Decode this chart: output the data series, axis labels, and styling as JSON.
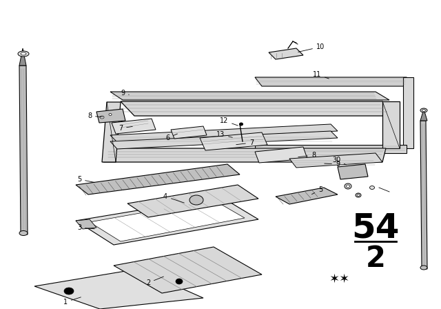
{
  "bg_color": "#ffffff",
  "fig_width": 6.4,
  "fig_height": 4.48,
  "dpi": 100,
  "black": "#000000",
  "gray_light": "#e0e0e0",
  "gray_mid": "#c0c0c0",
  "gray_dark": "#909090",
  "gray_fill": "#d8d8d8",
  "hatch_color": "#555555",
  "part_number_54": "54",
  "part_number_2": "2",
  "stars": "**"
}
